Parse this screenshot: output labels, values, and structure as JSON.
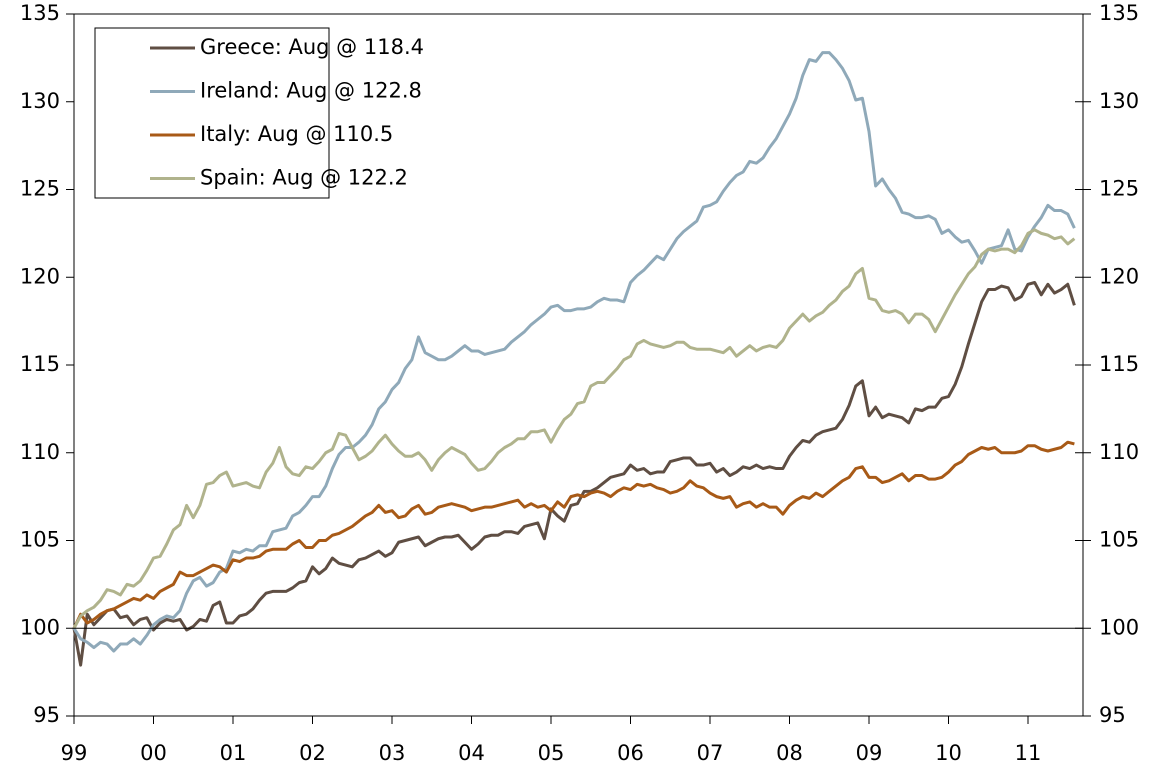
{
  "chart_data": {
    "type": "line",
    "x": [
      0,
      1,
      2,
      3,
      4,
      5,
      6,
      7,
      8,
      9,
      10,
      11,
      12,
      13,
      14,
      15,
      16,
      17,
      18,
      19,
      20,
      21,
      22,
      23,
      24,
      25,
      26,
      27,
      28,
      29,
      30,
      31,
      32,
      33,
      34,
      35,
      36,
      37,
      38,
      39,
      40,
      41,
      42,
      43,
      44,
      45,
      46,
      47,
      48,
      49,
      50,
      51,
      52,
      53,
      54,
      55,
      56,
      57,
      58,
      59,
      60,
      61,
      62,
      63,
      64,
      65,
      66,
      67,
      68,
      69,
      70,
      71,
      72,
      73,
      74,
      75,
      76,
      77,
      78,
      79,
      80,
      81,
      82,
      83,
      84,
      85,
      86,
      87,
      88,
      89,
      90,
      91,
      92,
      93,
      94,
      95,
      96,
      97,
      98,
      99,
      100,
      101,
      102,
      103,
      104,
      105,
      106,
      107,
      108,
      109,
      110,
      111,
      112,
      113,
      114,
      115,
      116,
      117,
      118,
      119,
      120,
      121,
      122,
      123,
      124,
      125,
      126,
      127,
      128,
      129,
      130,
      131,
      132,
      133,
      134,
      135,
      136,
      137,
      138,
      139,
      140,
      141,
      142,
      143,
      144,
      145,
      146,
      147,
      148,
      149,
      150,
      151
    ],
    "xlim": [
      0,
      152.3
    ],
    "xticks": [
      {
        "value": 0,
        "label": "99"
      },
      {
        "value": 12,
        "label": "00"
      },
      {
        "value": 24,
        "label": "01"
      },
      {
        "value": 36,
        "label": "02"
      },
      {
        "value": 48,
        "label": "03"
      },
      {
        "value": 60,
        "label": "04"
      },
      {
        "value": 72,
        "label": "05"
      },
      {
        "value": 84,
        "label": "06"
      },
      {
        "value": 96,
        "label": "07"
      },
      {
        "value": 108,
        "label": "08"
      },
      {
        "value": 120,
        "label": "09"
      },
      {
        "value": 132,
        "label": "10"
      },
      {
        "value": 144,
        "label": "11"
      }
    ],
    "ylim": [
      95,
      135
    ],
    "yticks": [
      95,
      100,
      105,
      110,
      115,
      120,
      125,
      130,
      135
    ],
    "y2lim": [
      95,
      135
    ],
    "y2ticks": [
      95,
      100,
      105,
      110,
      115,
      120,
      125,
      130,
      135
    ],
    "hline": 100,
    "legend": "upper left",
    "series": [
      {
        "name": "Greece: Aug @ 118.4",
        "color": "#5f4e43",
        "values": [
          100,
          97.9,
          100.8,
          100.2,
          100.6,
          101.0,
          101.1,
          100.6,
          100.7,
          100.2,
          100.5,
          100.6,
          99.9,
          100.3,
          100.5,
          100.4,
          100.5,
          99.9,
          100.1,
          100.5,
          100.4,
          101.3,
          101.5,
          100.3,
          100.3,
          100.7,
          100.8,
          101.1,
          101.6,
          102.0,
          102.1,
          102.1,
          102.1,
          102.3,
          102.6,
          102.7,
          103.5,
          103.1,
          103.4,
          104.0,
          103.7,
          103.6,
          103.5,
          103.9,
          104.0,
          104.2,
          104.4,
          104.1,
          104.3,
          104.9,
          105.0,
          105.1,
          105.2,
          104.7,
          104.9,
          105.1,
          105.2,
          105.2,
          105.3,
          104.9,
          104.5,
          104.8,
          105.2,
          105.3,
          105.3,
          105.5,
          105.5,
          105.4,
          105.8,
          105.9,
          106.0,
          105.1,
          106.8,
          106.4,
          106.1,
          107.0,
          107.1,
          107.8,
          107.8,
          108.0,
          108.3,
          108.6,
          108.7,
          108.8,
          109.3,
          109.0,
          109.1,
          108.8,
          108.9,
          108.9,
          109.5,
          109.6,
          109.7,
          109.7,
          109.3,
          109.3,
          109.4,
          108.9,
          109.1,
          108.7,
          108.9,
          109.2,
          109.1,
          109.3,
          109.1,
          109.2,
          109.1,
          109.1,
          109.8,
          110.3,
          110.7,
          110.6,
          111.0,
          111.2,
          111.3,
          111.4,
          111.9,
          112.7,
          113.8,
          114.1,
          112.1,
          112.6,
          112.0,
          112.2,
          112.1,
          112.0,
          111.7,
          112.5,
          112.4,
          112.6,
          112.6,
          113.1,
          113.2,
          113.9,
          114.9,
          116.2,
          117.4,
          118.6,
          119.3,
          119.3,
          119.5,
          119.4,
          118.7,
          118.9,
          119.6,
          119.7,
          119.0,
          119.6,
          119.1,
          119.3,
          119.6,
          118.4
        ]
      },
      {
        "name": "Ireland: Aug @ 122.8",
        "color": "#8fa9b9",
        "values": [
          100,
          99.4,
          99.2,
          98.9,
          99.2,
          99.1,
          98.7,
          99.1,
          99.1,
          99.4,
          99.1,
          99.6,
          100.2,
          100.5,
          100.7,
          100.6,
          101.0,
          102.0,
          102.7,
          102.9,
          102.4,
          102.6,
          103.2,
          103.4,
          104.4,
          104.3,
          104.5,
          104.4,
          104.7,
          104.7,
          105.5,
          105.6,
          105.7,
          106.4,
          106.6,
          107.0,
          107.5,
          107.5,
          108.1,
          109.1,
          109.9,
          110.3,
          110.3,
          110.6,
          111.0,
          111.6,
          112.5,
          112.9,
          113.6,
          114.0,
          114.8,
          115.3,
          116.6,
          115.7,
          115.5,
          115.3,
          115.3,
          115.5,
          115.8,
          116.1,
          115.8,
          115.8,
          115.6,
          115.7,
          115.8,
          115.9,
          116.3,
          116.6,
          116.9,
          117.3,
          117.6,
          117.9,
          118.3,
          118.4,
          118.1,
          118.1,
          118.2,
          118.2,
          118.3,
          118.6,
          118.8,
          118.7,
          118.7,
          118.6,
          119.7,
          120.1,
          120.4,
          120.8,
          121.2,
          121.0,
          121.6,
          122.2,
          122.6,
          122.9,
          123.2,
          124.0,
          124.1,
          124.3,
          124.9,
          125.4,
          125.8,
          126.0,
          126.6,
          126.5,
          126.8,
          127.4,
          127.9,
          128.6,
          129.3,
          130.2,
          131.5,
          132.4,
          132.3,
          132.8,
          132.8,
          132.4,
          131.9,
          131.2,
          130.1,
          130.2,
          128.3,
          125.2,
          125.6,
          125.0,
          124.5,
          123.7,
          123.6,
          123.4,
          123.4,
          123.5,
          123.3,
          122.5,
          122.7,
          122.3,
          122.0,
          122.1,
          121.5,
          120.8,
          121.6,
          121.7,
          121.8,
          122.7,
          121.6,
          121.5,
          122.3,
          122.9,
          123.4,
          124.1,
          123.8,
          123.8,
          123.6,
          122.8
        ]
      },
      {
        "name": "Italy: Aug @ 110.5",
        "color": "#a85a17",
        "values": [
          100,
          100.8,
          100.3,
          100.5,
          100.8,
          101.0,
          101.1,
          101.3,
          101.5,
          101.7,
          101.6,
          101.9,
          101.7,
          102.1,
          102.3,
          102.5,
          103.2,
          103.0,
          103.0,
          103.2,
          103.4,
          103.6,
          103.5,
          103.2,
          103.9,
          103.8,
          104.0,
          104.0,
          104.1,
          104.4,
          104.5,
          104.5,
          104.5,
          104.8,
          105.0,
          104.6,
          104.6,
          105.0,
          105.0,
          105.3,
          105.4,
          105.6,
          105.8,
          106.1,
          106.4,
          106.6,
          107.0,
          106.6,
          106.7,
          106.3,
          106.4,
          106.8,
          107.0,
          106.5,
          106.6,
          106.9,
          107.0,
          107.1,
          107.0,
          106.9,
          106.7,
          106.8,
          106.9,
          106.9,
          107.0,
          107.1,
          107.2,
          107.3,
          106.9,
          107.1,
          106.9,
          107.0,
          106.7,
          107.2,
          106.9,
          107.5,
          107.6,
          107.5,
          107.7,
          107.8,
          107.7,
          107.5,
          107.8,
          108.0,
          107.9,
          108.2,
          108.1,
          108.2,
          108.0,
          107.9,
          107.7,
          107.8,
          108.0,
          108.4,
          108.1,
          108.0,
          107.7,
          107.5,
          107.4,
          107.5,
          106.9,
          107.1,
          107.2,
          106.9,
          107.1,
          106.9,
          106.9,
          106.5,
          107.0,
          107.3,
          107.5,
          107.4,
          107.7,
          107.5,
          107.8,
          108.1,
          108.4,
          108.6,
          109.1,
          109.2,
          108.6,
          108.6,
          108.3,
          108.4,
          108.6,
          108.8,
          108.4,
          108.7,
          108.7,
          108.5,
          108.5,
          108.6,
          108.9,
          109.3,
          109.5,
          109.9,
          110.1,
          110.3,
          110.2,
          110.3,
          110.0,
          110.0,
          110.0,
          110.1,
          110.4,
          110.4,
          110.2,
          110.1,
          110.2,
          110.3,
          110.6,
          110.5
        ]
      },
      {
        "name": "Spain: Aug @ 122.2",
        "color": "#b0b38c",
        "values": [
          100,
          100.7,
          101.0,
          101.2,
          101.6,
          102.2,
          102.1,
          101.9,
          102.5,
          102.4,
          102.7,
          103.3,
          104.0,
          104.1,
          104.8,
          105.6,
          105.9,
          107.0,
          106.3,
          107.0,
          108.2,
          108.3,
          108.7,
          108.9,
          108.1,
          108.2,
          108.3,
          108.1,
          108.0,
          108.9,
          109.4,
          110.3,
          109.2,
          108.8,
          108.7,
          109.2,
          109.1,
          109.5,
          110.0,
          110.2,
          111.1,
          111.0,
          110.3,
          109.6,
          109.8,
          110.1,
          110.6,
          111.0,
          110.5,
          110.1,
          109.8,
          109.8,
          110.0,
          109.6,
          109.0,
          109.6,
          110.0,
          110.3,
          110.1,
          109.9,
          109.4,
          109.0,
          109.1,
          109.5,
          110.0,
          110.3,
          110.5,
          110.8,
          110.8,
          111.2,
          111.2,
          111.3,
          110.6,
          111.3,
          111.9,
          112.2,
          112.8,
          112.9,
          113.8,
          114.0,
          114.0,
          114.4,
          114.8,
          115.3,
          115.5,
          116.2,
          116.4,
          116.2,
          116.1,
          116.0,
          116.1,
          116.3,
          116.3,
          116.0,
          115.9,
          115.9,
          115.9,
          115.8,
          115.7,
          116.0,
          115.5,
          115.8,
          116.1,
          115.8,
          116.0,
          116.1,
          116.0,
          116.4,
          117.1,
          117.5,
          117.9,
          117.5,
          117.8,
          118.0,
          118.4,
          118.7,
          119.2,
          119.5,
          120.2,
          120.5,
          118.8,
          118.7,
          118.1,
          118.0,
          118.1,
          117.9,
          117.4,
          117.9,
          117.9,
          117.6,
          116.9,
          117.6,
          118.3,
          119.0,
          119.6,
          120.2,
          120.6,
          121.3,
          121.6,
          121.5,
          121.6,
          121.6,
          121.4,
          121.8,
          122.5,
          122.7,
          122.5,
          122.4,
          122.2,
          122.3,
          121.9,
          122.2
        ]
      }
    ]
  }
}
